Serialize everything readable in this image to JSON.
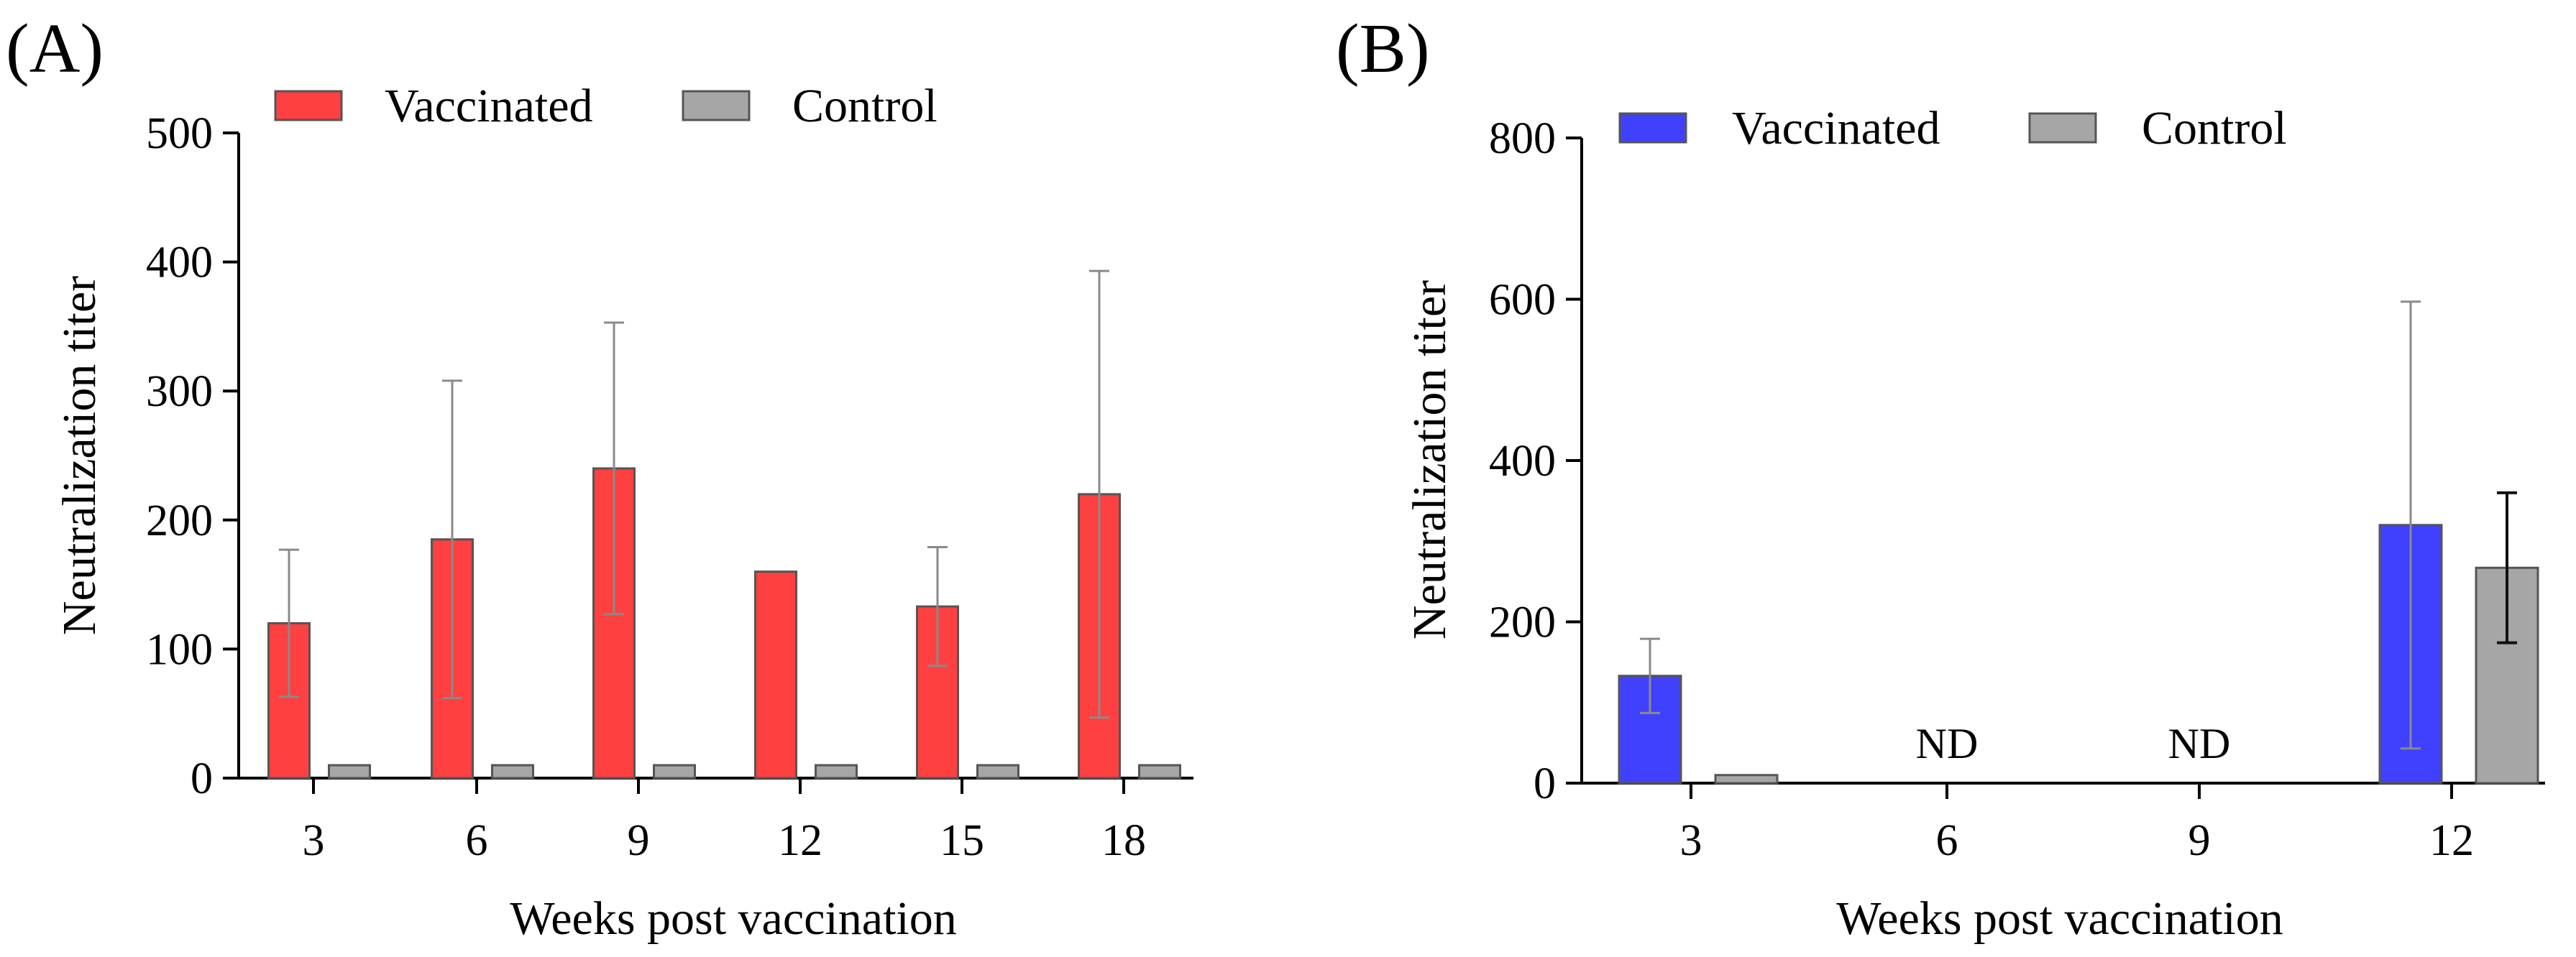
{
  "chart_data": [
    {
      "type": "bar",
      "panel_label": "(A)",
      "xlabel": "Weeks post vaccination",
      "ylabel": "Neutralization titer",
      "ylim": [
        0,
        500
      ],
      "yticks": [
        0,
        100,
        200,
        300,
        400,
        500
      ],
      "categories": [
        "3",
        "6",
        "9",
        "12",
        "15",
        "18"
      ],
      "legend_position": "top",
      "series": [
        {
          "name": "Vaccinated",
          "color": "#ff4040",
          "values": [
            120,
            185,
            240,
            160,
            133,
            220
          ],
          "error": [
            57,
            123,
            113,
            0,
            46,
            173
          ]
        },
        {
          "name": "Control",
          "color": "#a6a6a6",
          "values": [
            10,
            10,
            10,
            10,
            10,
            10
          ],
          "error": [
            0,
            0,
            0,
            0,
            0,
            0
          ]
        }
      ],
      "annotations": []
    },
    {
      "type": "bar",
      "panel_label": "(B)",
      "xlabel": "Weeks post vaccination",
      "ylabel": "Neutralization titer",
      "ylim": [
        0,
        800
      ],
      "yticks": [
        0,
        200,
        400,
        600,
        800
      ],
      "categories": [
        "3",
        "6",
        "9",
        "12"
      ],
      "legend_position": "top",
      "series": [
        {
          "name": "Vaccinated",
          "color": "#4040ff",
          "values": [
            133,
            null,
            null,
            320
          ],
          "error": [
            46,
            null,
            null,
            277
          ]
        },
        {
          "name": "Control",
          "color": "#a6a6a6",
          "values": [
            10,
            null,
            null,
            267
          ],
          "error": [
            0,
            null,
            null,
            93
          ]
        }
      ],
      "annotations": [
        {
          "category": "6",
          "text": "ND"
        },
        {
          "category": "9",
          "text": "ND"
        }
      ]
    }
  ]
}
